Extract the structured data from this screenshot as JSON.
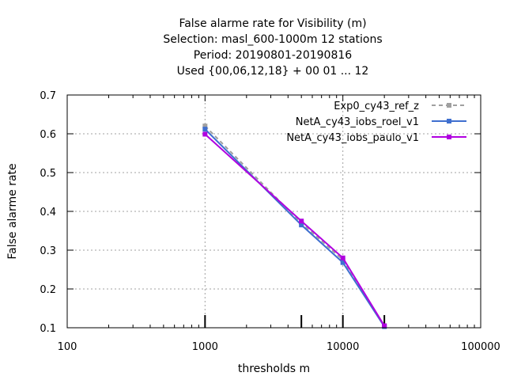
{
  "chart_data": {
    "type": "line",
    "title_lines": [
      "False alarme rate  for Visibility (m)",
      "Selection: masl_600-1000m     12 stations",
      "Period: 20190801-20190816",
      "Used {00,06,12,18} + 00 01 ... 12"
    ],
    "xlabel": "thresholds m",
    "ylabel": "False alarme rate",
    "x_scale": "log",
    "xlim": [
      100,
      100000
    ],
    "ylim": [
      0.1,
      0.7
    ],
    "x_ticks": [
      100,
      1000,
      10000,
      100000
    ],
    "x_tick_labels": [
      "100",
      "1000",
      "10000",
      "100000"
    ],
    "y_ticks": [
      0.1,
      0.2,
      0.3,
      0.4,
      0.5,
      0.6,
      0.7
    ],
    "y_tick_labels": [
      "0.1",
      "0.2",
      "0.3",
      "0.4",
      "0.5",
      "0.6",
      "0.7"
    ],
    "grid": true,
    "legend_position": "top-right",
    "threshold_markers_x": [
      1000,
      5000,
      10000,
      20000
    ],
    "series": [
      {
        "name": "Exp0_cy43_ref_z",
        "color": "#a0a0a0",
        "dashed": true,
        "x": [
          1000,
          5000,
          10000,
          20000
        ],
        "y": [
          0.62,
          0.37,
          0.275,
          0.105
        ]
      },
      {
        "name": "NetA_cy43_iobs_roel_v1",
        "color": "#3f6fcf",
        "dashed": false,
        "x": [
          1000,
          5000,
          10000,
          20000
        ],
        "y": [
          0.612,
          0.365,
          0.268,
          0.103
        ]
      },
      {
        "name": "NetA_cy43_iobs_paulo_v1",
        "color": "#b000e0",
        "dashed": false,
        "x": [
          1000,
          5000,
          10000,
          20000
        ],
        "y": [
          0.599,
          0.375,
          0.28,
          0.105
        ]
      }
    ]
  }
}
